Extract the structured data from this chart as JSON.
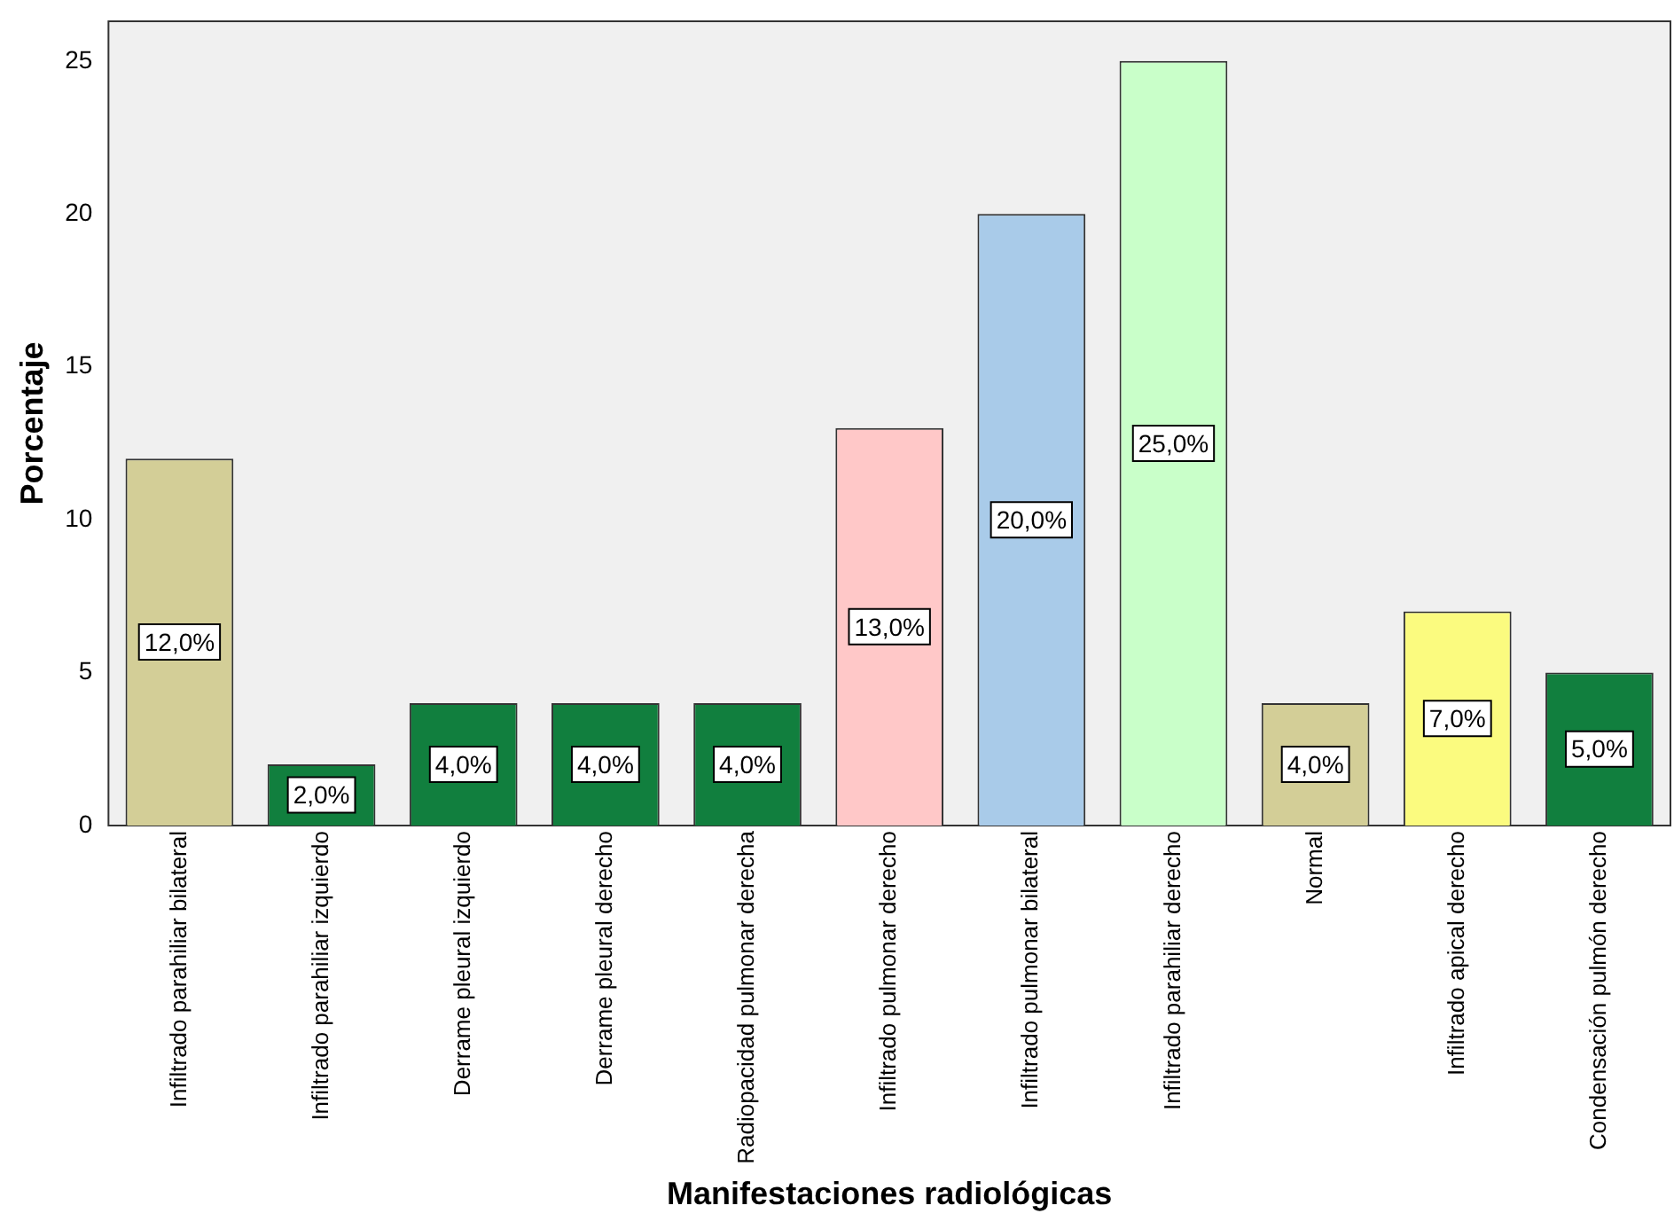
{
  "chart_data": {
    "type": "bar",
    "xlabel": "Manifestaciones radiológicas",
    "ylabel": "Porcentaje",
    "categories": [
      "Infiltrado parahiliar bilateral",
      "Infiltrado parahiliar izquierdo",
      "Derrame pleural izquierdo",
      "Derrame pleural derecho",
      "Radiopacidad pulmonar derecha",
      "Infiltrado pulmonar derecho",
      "Infiltrado pulmonar bilateral",
      "Infiltrado parahiliar derecho",
      "Normal",
      "Infiltrado apical derecho",
      "Condensación pulmón derecho"
    ],
    "values": [
      12,
      2,
      4,
      4,
      4,
      13,
      20,
      25,
      4,
      7,
      5
    ],
    "value_labels": [
      "12,0%",
      "2,0%",
      "4,0%",
      "4,0%",
      "4,0%",
      "13,0%",
      "20,0%",
      "25,0%",
      "4,0%",
      "7,0%",
      "5,0%"
    ],
    "colors": [
      "#d3ce97",
      "#117f3e",
      "#117f3e",
      "#117f3e",
      "#117f3e",
      "#ffc8c8",
      "#a9cbe9",
      "#c9ffc9",
      "#d3ce97",
      "#fbfb7f",
      "#117f3e"
    ],
    "ylim": [
      0,
      26.3
    ],
    "yticks": [
      0,
      5,
      10,
      15,
      20,
      25
    ],
    "grid": false,
    "legend": false
  }
}
